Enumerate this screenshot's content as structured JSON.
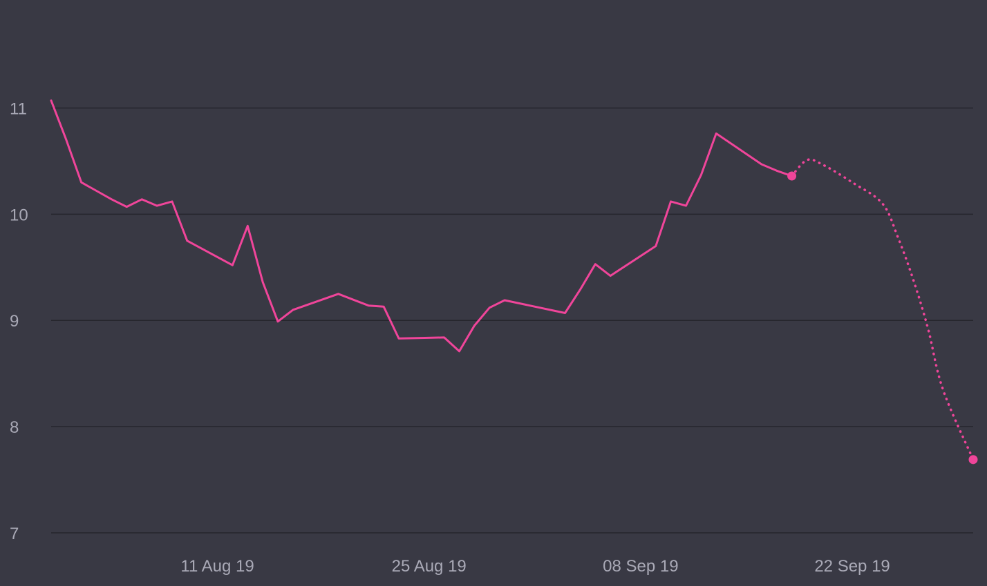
{
  "chart_data": {
    "type": "line",
    "title": "",
    "xlabel": "",
    "ylabel": "",
    "x_axis": {
      "type": "date",
      "range": [
        "2019-07-31",
        "2019-09-30"
      ],
      "ticks": [
        {
          "date": "2019-08-11",
          "label": "11 Aug 19"
        },
        {
          "date": "2019-08-25",
          "label": "25 Aug 19"
        },
        {
          "date": "2019-09-08",
          "label": "08 Sep 19"
        },
        {
          "date": "2019-09-22",
          "label": "22 Sep 19"
        }
      ]
    },
    "y_axis": {
      "range": [
        7,
        11.9
      ],
      "ticks": [
        {
          "value": 7,
          "label": "7"
        },
        {
          "value": 8,
          "label": "8"
        },
        {
          "value": 9,
          "label": "9"
        },
        {
          "value": 10,
          "label": "10"
        },
        {
          "value": 11,
          "label": "11"
        }
      ]
    },
    "grid": true,
    "colors": {
      "background": "#393944",
      "series": "#f0459a",
      "grid": "#25252c",
      "tick_label": "#a9a9b6"
    },
    "series": [
      {
        "style": "solid",
        "points": [
          {
            "x": "2019-07-31",
            "y": 11.07
          },
          {
            "x": "2019-08-01",
            "y": 10.7
          },
          {
            "x": "2019-08-02",
            "y": 10.3
          },
          {
            "x": "2019-08-03",
            "y": 10.22
          },
          {
            "x": "2019-08-04",
            "y": 10.14
          },
          {
            "x": "2019-08-05",
            "y": 10.07
          },
          {
            "x": "2019-08-06",
            "y": 10.14
          },
          {
            "x": "2019-08-07",
            "y": 10.08
          },
          {
            "x": "2019-08-08",
            "y": 10.12
          },
          {
            "x": "2019-08-09",
            "y": 9.75
          },
          {
            "x": "2019-08-12",
            "y": 9.52
          },
          {
            "x": "2019-08-13",
            "y": 9.89
          },
          {
            "x": "2019-08-14",
            "y": 9.36
          },
          {
            "x": "2019-08-15",
            "y": 8.99
          },
          {
            "x": "2019-08-16",
            "y": 9.1
          },
          {
            "x": "2019-08-19",
            "y": 9.25
          },
          {
            "x": "2019-08-21",
            "y": 9.14
          },
          {
            "x": "2019-08-22",
            "y": 9.13
          },
          {
            "x": "2019-08-23",
            "y": 8.83
          },
          {
            "x": "2019-08-26",
            "y": 8.84
          },
          {
            "x": "2019-08-27",
            "y": 8.71
          },
          {
            "x": "2019-08-28",
            "y": 8.95
          },
          {
            "x": "2019-08-29",
            "y": 9.12
          },
          {
            "x": "2019-08-30",
            "y": 9.19
          },
          {
            "x": "2019-09-03",
            "y": 9.07
          },
          {
            "x": "2019-09-04",
            "y": 9.29
          },
          {
            "x": "2019-09-05",
            "y": 9.53
          },
          {
            "x": "2019-09-06",
            "y": 9.42
          },
          {
            "x": "2019-09-09",
            "y": 9.7
          },
          {
            "x": "2019-09-10",
            "y": 10.12
          },
          {
            "x": "2019-09-11",
            "y": 10.08
          },
          {
            "x": "2019-09-12",
            "y": 10.37
          },
          {
            "x": "2019-09-13",
            "y": 10.76
          },
          {
            "x": "2019-09-16",
            "y": 10.47
          },
          {
            "x": "2019-09-17",
            "y": 10.41
          },
          {
            "x": "2019-09-18",
            "y": 10.36
          }
        ],
        "end_marker": true
      },
      {
        "style": "dotted",
        "points": [
          {
            "x": "2019-09-18",
            "y": 10.36
          },
          {
            "x": "2019-09-19",
            "y": 10.51
          },
          {
            "x": "2019-09-20",
            "y": 10.47
          },
          {
            "x": "2019-09-22",
            "y": 10.3
          },
          {
            "x": "2019-09-24",
            "y": 10.1
          },
          {
            "x": "2019-09-25",
            "y": 9.79
          },
          {
            "x": "2019-09-26",
            "y": 9.4
          },
          {
            "x": "2019-09-27",
            "y": 8.93
          },
          {
            "x": "2019-09-28",
            "y": 8.35
          },
          {
            "x": "2019-09-30",
            "y": 7.69
          }
        ],
        "end_marker": true
      }
    ]
  }
}
